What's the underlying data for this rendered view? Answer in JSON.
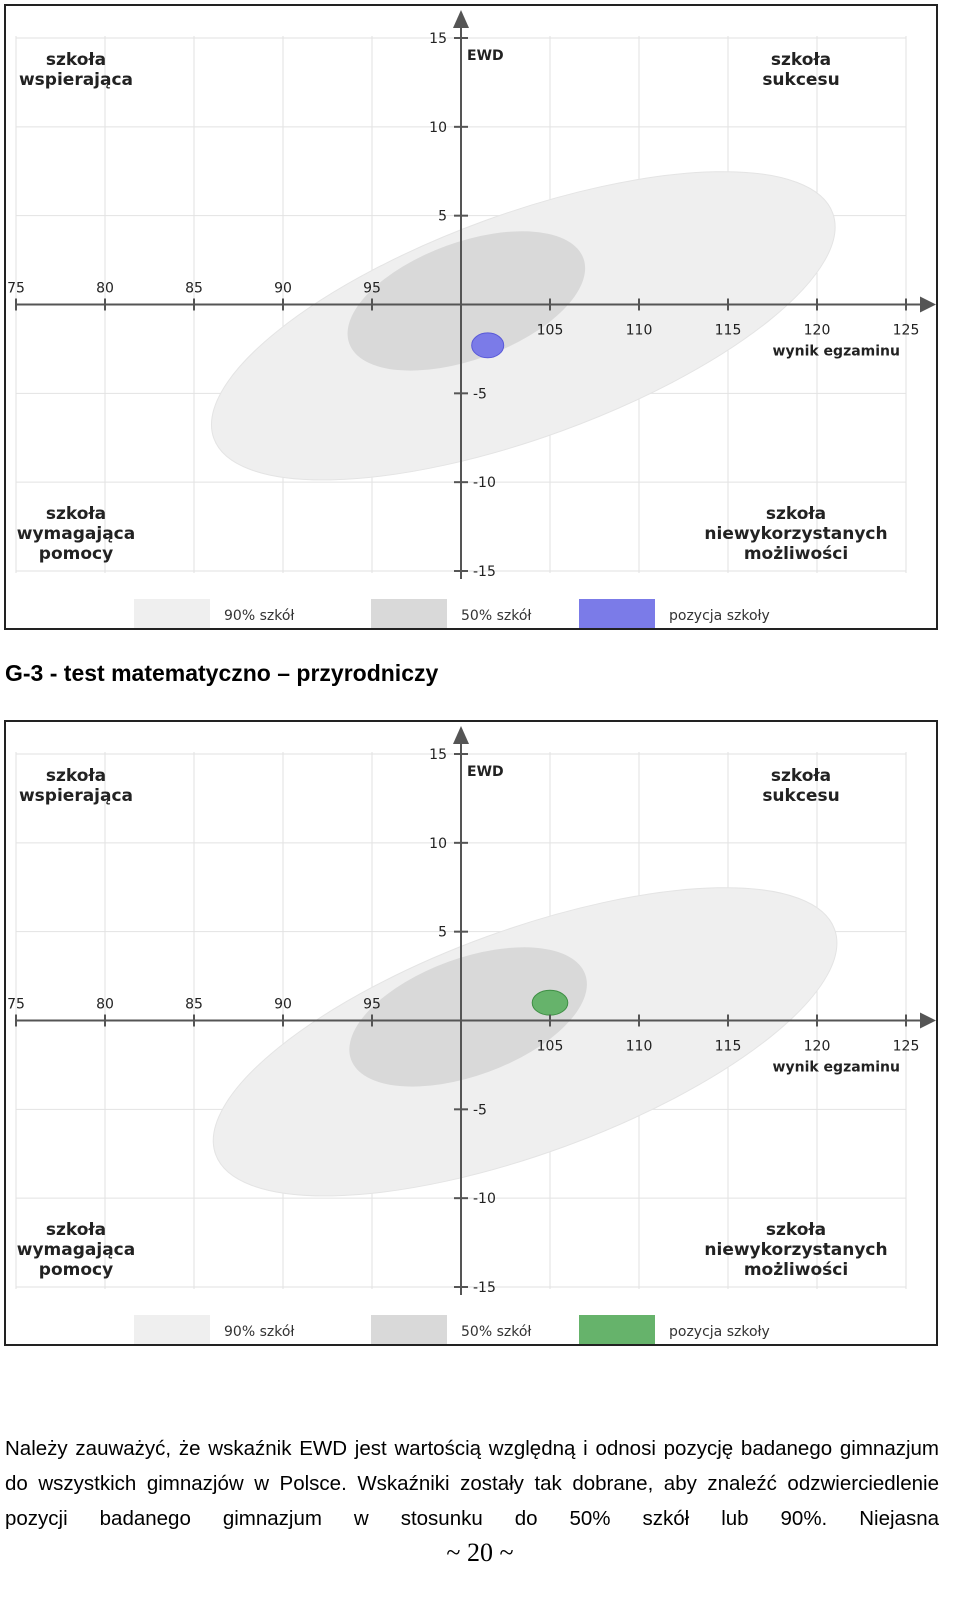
{
  "chart_data": [
    {
      "type": "scatter",
      "x_label": "wynik egzaminu",
      "y_label": "EWD",
      "xlim": [
        75,
        125
      ],
      "ylim": [
        -15,
        15
      ],
      "x_ticks": [
        75,
        80,
        85,
        90,
        95,
        105,
        110,
        115,
        120,
        125
      ],
      "y_ticks": [
        15,
        10,
        5,
        -5,
        -10,
        -15
      ],
      "grid": true,
      "quadrants": {
        "top_left": [
          "szkoła",
          "wspierająca"
        ],
        "top_right": [
          "szkoła",
          "sukcesu"
        ],
        "bottom_left": [
          "szkoła",
          "wymagająca",
          "pomocy"
        ],
        "bottom_right": [
          "szkoła",
          "niewykorzystanych",
          "możliwości"
        ]
      },
      "ellipse_90": {
        "cx": 103.5,
        "cy": -1.2,
        "rx": 18.5,
        "ry": 6.3,
        "angle_deg": -20
      },
      "ellipse_50": {
        "cx": 100.3,
        "cy": 0.2,
        "rx": 7.0,
        "ry": 3.3,
        "angle_deg": -20
      },
      "school_position": {
        "x": 101.5,
        "y": -2.3,
        "rx": 0.9,
        "ry": 0.7
      },
      "legend": [
        "90% szkół",
        "50% szkół",
        "pozycja szkoły"
      ],
      "colors": {
        "ellipse_90": "#efefef",
        "ellipse_50": "#d9d9d9",
        "position": "#7b7be8",
        "position_stroke": "#5a5ad8"
      }
    },
    {
      "type": "scatter",
      "x_label": "wynik egzaminu",
      "y_label": "EWD",
      "xlim": [
        75,
        125
      ],
      "ylim": [
        -15,
        15
      ],
      "x_ticks": [
        75,
        80,
        85,
        90,
        95,
        105,
        110,
        115,
        120,
        125
      ],
      "y_ticks": [
        15,
        10,
        5,
        -5,
        -10,
        -15
      ],
      "grid": true,
      "quadrants": {
        "top_left": [
          "szkoła",
          "wspierająca"
        ],
        "top_right": [
          "szkoła",
          "sukcesu"
        ],
        "bottom_left": [
          "szkoła",
          "wymagająca",
          "pomocy"
        ],
        "bottom_right": [
          "szkoła",
          "niewykorzystanych",
          "możliwości"
        ]
      },
      "ellipse_90": {
        "cx": 103.6,
        "cy": -1.2,
        "rx": 18.5,
        "ry": 6.3,
        "angle_deg": -20
      },
      "ellipse_50": {
        "cx": 100.4,
        "cy": 0.2,
        "rx": 7.0,
        "ry": 3.3,
        "angle_deg": -20
      },
      "school_position": {
        "x": 105.0,
        "y": 1.0,
        "rx": 1.0,
        "ry": 0.7
      },
      "legend": [
        "90% szkół",
        "50% szkół",
        "pozycja szkoły"
      ],
      "colors": {
        "ellipse_90": "#efefef",
        "ellipse_50": "#d9d9d9",
        "position": "#66b36b",
        "position_stroke": "#3f8f45"
      }
    }
  ],
  "heading": "G-3 - test matematyczno – przyrodniczy",
  "paragraph": "Należy zauważyć, że wskaźnik EWD jest wartością względną i odnosi pozycję badanego gimnazjum do wszystkich gimnazjów w Polsce. Wskaźniki zostały tak dobrane, aby znaleźć odzwierciedlenie pozycji badanego gimnazjum w stosunku do 50% szkół lub 90%. Niejasna",
  "page_number": "~ 20 ~"
}
